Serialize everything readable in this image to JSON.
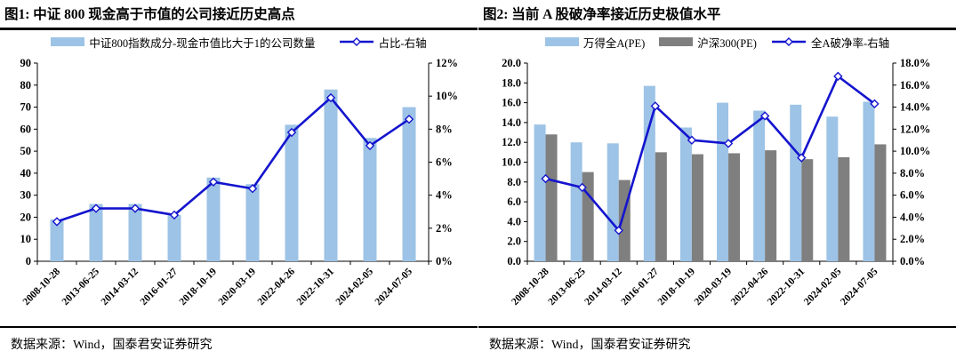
{
  "colors": {
    "bar_blue": "#9DC3E6",
    "bar_gray": "#7F7F7F",
    "line_blue": "#1414CE",
    "axis_black": "#000000"
  },
  "chart_data": [
    {
      "type": "bar",
      "title": "图1:  中证 800 现金高于市值的公司接近历史高点",
      "categories": [
        "2008-10-28",
        "2013-06-25",
        "2014-03-12",
        "2016-01-27",
        "2018-10-19",
        "2020-03-19",
        "2022-04-26",
        "2022-10-31",
        "2024-02-05",
        "2024-07-05"
      ],
      "series": [
        {
          "name": "中证800指数成分-现金市值比大于1的公司数量",
          "kind": "bar",
          "axis": "left",
          "color": "#9DC3E6",
          "values": [
            19,
            26,
            26,
            21,
            38,
            35,
            62,
            78,
            56,
            70
          ]
        },
        {
          "name": "占比-右轴",
          "kind": "line",
          "axis": "right",
          "color": "#1414CE",
          "values": [
            2.4,
            3.2,
            3.2,
            2.8,
            4.8,
            4.4,
            7.8,
            9.9,
            7.0,
            8.6
          ]
        }
      ],
      "left_axis": {
        "min": 0,
        "max": 90,
        "step": 10,
        "format": "int"
      },
      "right_axis": {
        "min": 0,
        "max": 12,
        "step": 2,
        "format": "pct0"
      },
      "grid": false,
      "legend_position": "top",
      "source": "数据来源：Wind，国泰君安证券研究"
    },
    {
      "type": "bar",
      "title": "图2:  当前 A 股破净率接近历史极值水平",
      "categories": [
        "2008-10-28",
        "2013-06-25",
        "2014-03-12",
        "2016-01-27",
        "2018-10-19",
        "2020-03-19",
        "2022-04-26",
        "2022-10-31",
        "2024-02-05",
        "2024-07-05"
      ],
      "series": [
        {
          "name": "万得全A(PE)",
          "kind": "bar",
          "axis": "left",
          "color": "#9DC3E6",
          "values": [
            13.8,
            12.0,
            11.9,
            17.7,
            13.5,
            16.0,
            15.2,
            15.8,
            14.6,
            16.1
          ]
        },
        {
          "name": "沪深300(PE)",
          "kind": "bar",
          "axis": "left",
          "color": "#7F7F7F",
          "values": [
            12.8,
            9.0,
            8.2,
            11.0,
            10.8,
            10.9,
            11.2,
            10.3,
            10.5,
            11.8
          ]
        },
        {
          "name": "全A破净率-右轴",
          "kind": "line",
          "axis": "right",
          "color": "#1414CE",
          "values": [
            7.5,
            6.7,
            2.8,
            14.1,
            11.0,
            10.7,
            13.2,
            9.4,
            16.8,
            14.3
          ]
        }
      ],
      "left_axis": {
        "min": 0,
        "max": 20,
        "step": 2,
        "format": "dec1"
      },
      "right_axis": {
        "min": 0,
        "max": 18,
        "step": 2,
        "format": "pct1"
      },
      "grid": false,
      "legend_position": "top",
      "source": "数据来源：Wind，国泰君安证券研究"
    }
  ]
}
